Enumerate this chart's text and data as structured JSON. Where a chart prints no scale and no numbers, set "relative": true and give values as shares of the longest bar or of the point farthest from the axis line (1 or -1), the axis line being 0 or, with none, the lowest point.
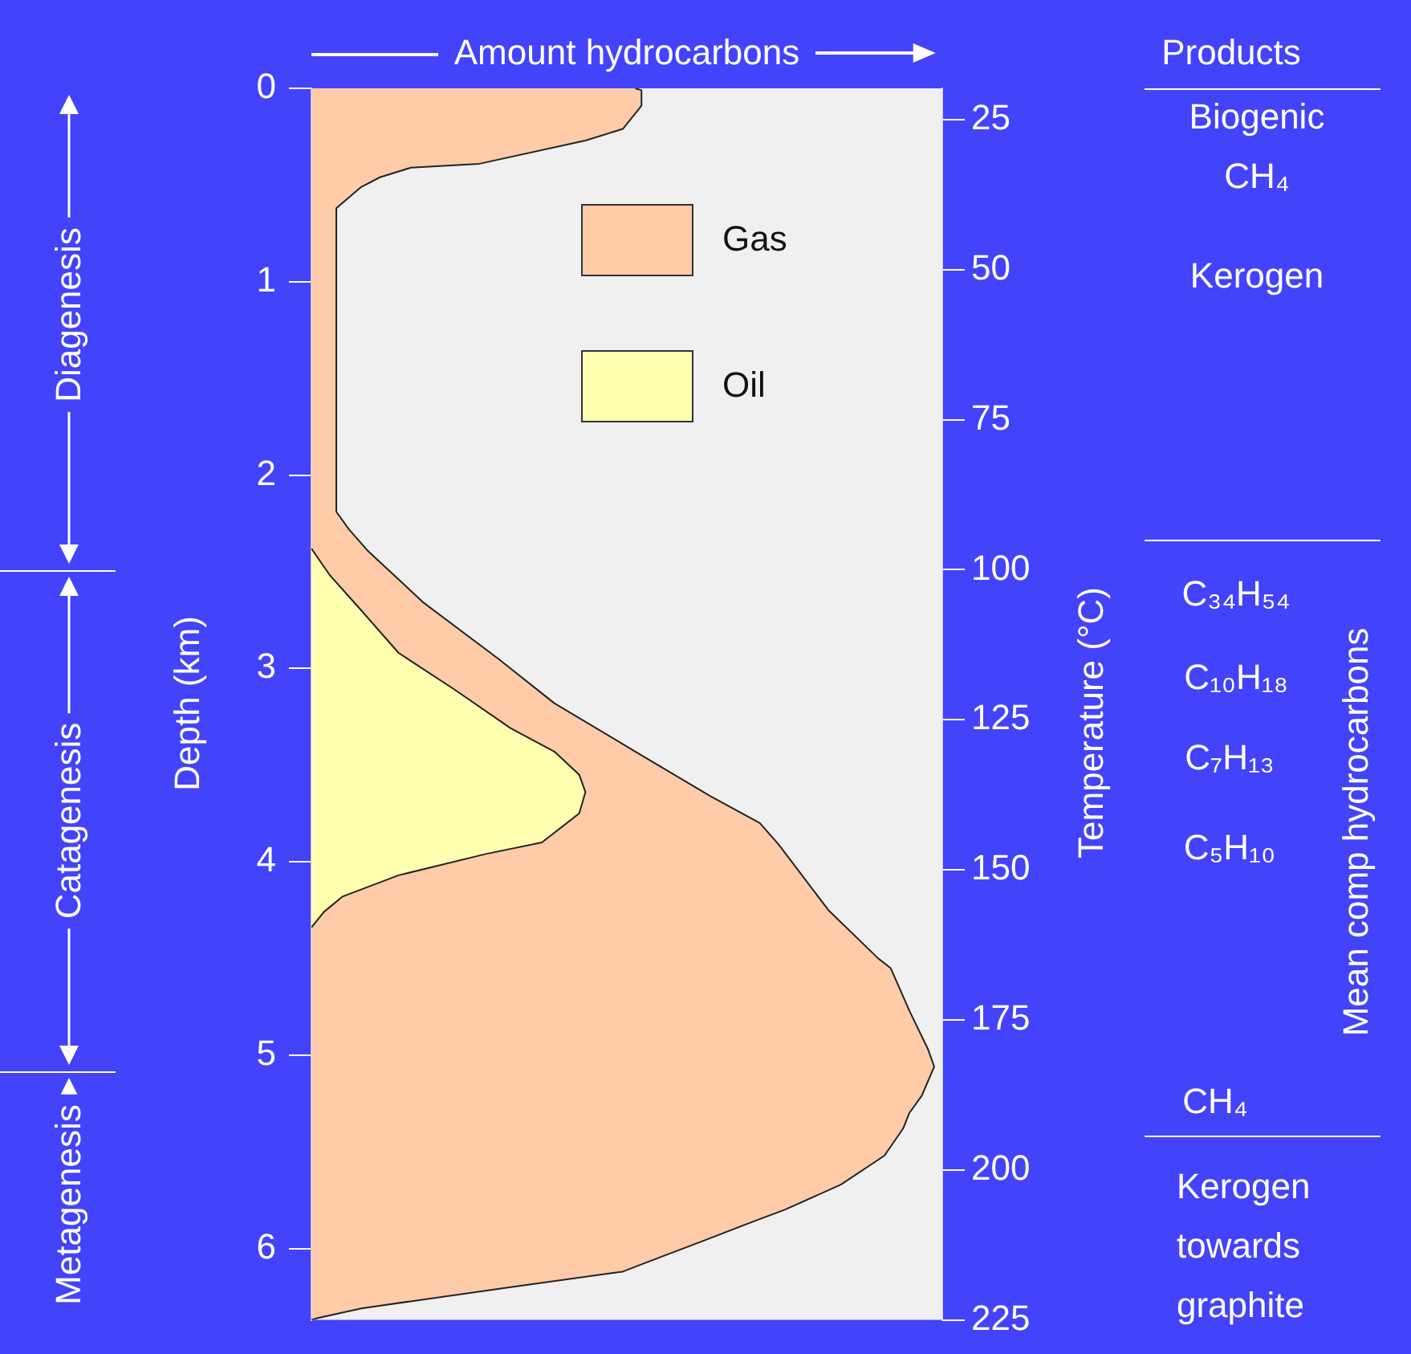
{
  "chart_data": {
    "type": "area",
    "orientation": "horizontal",
    "relative": true,
    "xlabel": "Amount hydrocarbons",
    "ylabel": "Depth (km)",
    "y2label": "Temperature (°C)",
    "ylim": [
      6.37,
      0
    ],
    "yticks": [
      0,
      1,
      2,
      3,
      4,
      5,
      6
    ],
    "y2lim": [
      225,
      19.8
    ],
    "y2ticks": [
      25,
      50,
      75,
      100,
      125,
      150,
      175,
      200,
      225
    ],
    "legend": "top",
    "series": [
      {
        "name": "Gas",
        "color": "#ffcba8",
        "x": [
          0,
          0.01,
          0.09,
          0.21,
          0.27,
          0.39,
          0.41,
          0.46,
          0.51,
          0.62,
          1.4,
          1.45,
          2.19,
          2.28,
          2.39,
          2.66,
          2.95,
          3.18,
          3.43,
          3.66,
          3.8,
          3.91,
          4.25,
          4.5,
          4.55,
          4.77,
          4.97,
          5.06,
          5.21,
          5.3,
          5.38,
          5.52,
          5.67,
          5.8,
          5.86,
          5.96,
          6.07,
          6.12,
          6.2,
          6.31,
          6.36,
          6.37
        ],
        "values": [
          0.52,
          0.53,
          0.53,
          0.5,
          0.44,
          0.27,
          0.16,
          0.11,
          0.08,
          0.04,
          0.04,
          0.04,
          0.04,
          0.06,
          0.09,
          0.18,
          0.3,
          0.39,
          0.52,
          0.64,
          0.72,
          0.75,
          0.83,
          0.91,
          0.93,
          0.96,
          0.99,
          1,
          0.98,
          0.96,
          0.95,
          0.92,
          0.85,
          0.76,
          0.71,
          0.63,
          0.54,
          0.5,
          0.32,
          0.08,
          0.01,
          0
        ]
      },
      {
        "name": "Oil",
        "color": "#ffffb0",
        "x": [
          2.38,
          2.52,
          2.7,
          2.92,
          3.11,
          3.31,
          3.43,
          3.55,
          3.64,
          3.75,
          3.9,
          3.96,
          4.07,
          4.18,
          4.26,
          4.34
        ],
        "values": [
          0,
          0.03,
          0.08,
          0.14,
          0.23,
          0.32,
          0.39,
          0.43,
          0.44,
          0.43,
          0.37,
          0.28,
          0.14,
          0.05,
          0.02,
          0
        ]
      }
    ],
    "annotations": [
      "Diagenesis",
      "Catagenesis",
      "Metagenesis",
      "Products",
      "Biogenic CH₄",
      "Kerogen",
      "C₃₄H₅₄",
      "C₁₀H₁₈",
      "C₇H₁₃",
      "C₅H₁₀",
      "CH₄",
      "Kerogen towards graphite",
      "Mean comp hydrocarbons"
    ]
  }
}
